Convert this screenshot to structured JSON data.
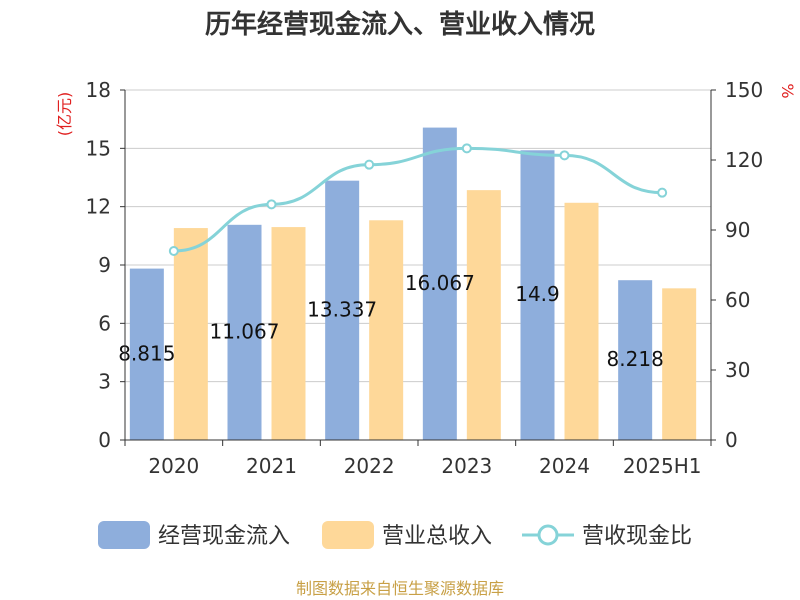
{
  "colors": {
    "cash_bar": "#8eaedc",
    "revenue_bar": "#fed899",
    "ratio_line": "#85d3d8",
    "unit_red": "#e02020",
    "source_text": "#c8a046",
    "axis": "#333333",
    "grid": "#cccccc"
  },
  "chart_data": {
    "type": "bar",
    "title": "历年经营现金流入、营业收入情况",
    "categories": [
      "2020",
      "2021",
      "2022",
      "2023",
      "2024",
      "2025H1"
    ],
    "series": [
      {
        "name": "经营现金流入",
        "type": "bar",
        "axis": "left",
        "values": [
          8.815,
          11.067,
          13.337,
          16.067,
          14.9,
          8.218
        ],
        "labels": [
          "8.815",
          "11.067",
          "13.337",
          "16.067",
          "14.9",
          "8.218"
        ]
      },
      {
        "name": "营业总收入",
        "type": "bar",
        "axis": "left",
        "values": [
          10.9,
          10.95,
          11.3,
          12.85,
          12.2,
          7.8
        ]
      },
      {
        "name": "营收现金比",
        "type": "line",
        "axis": "right",
        "values": [
          81,
          101,
          118,
          125,
          122,
          106
        ]
      }
    ],
    "y_left": {
      "label": "(亿元)",
      "ylim": [
        0,
        18
      ],
      "ticks": [
        "0",
        "3",
        "6",
        "9",
        "12",
        "15",
        "18"
      ]
    },
    "y_right": {
      "label": "%",
      "ylim": [
        0,
        150
      ],
      "ticks": [
        "0",
        "30",
        "60",
        "90",
        "120",
        "150"
      ]
    },
    "grid": true,
    "legend_position": "bottom"
  },
  "source": "制图数据来自恒生聚源数据库"
}
